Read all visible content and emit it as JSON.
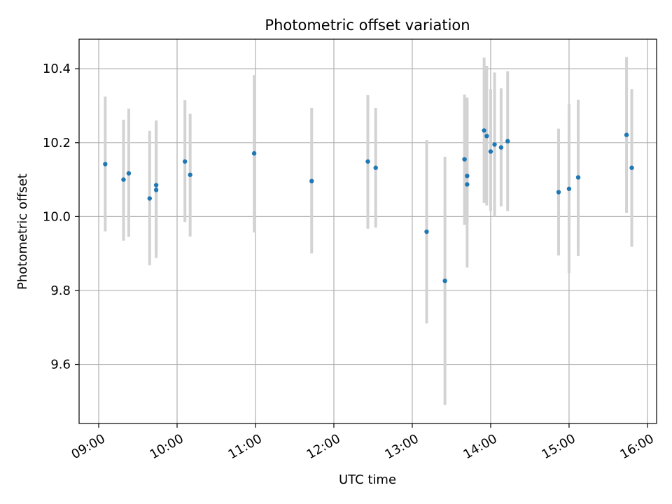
{
  "chart_data": {
    "type": "scatter",
    "title": "Photometric offset variation",
    "xlabel": "UTC time",
    "ylabel": "Photometric offset",
    "x_is_time": true,
    "x_tick_labels": [
      "09:00",
      "10:00",
      "11:00",
      "12:00",
      "13:00",
      "14:00",
      "15:00",
      "16:00"
    ],
    "x_ticks": [
      "09:00",
      "10:00",
      "11:00",
      "12:00",
      "13:00",
      "14:00",
      "15:00",
      "16:00"
    ],
    "xlim": [
      "08:45",
      "16:07"
    ],
    "y_ticks": [
      9.6,
      9.8,
      10.0,
      10.2,
      10.4
    ],
    "y_tick_labels": [
      "9.6",
      "9.8",
      "10.0",
      "10.2",
      "10.4"
    ],
    "ylim": [
      9.44,
      10.48
    ],
    "grid": true,
    "point_color": "#1f77b4",
    "errorbar_color": "#d3d3d3",
    "points": [
      {
        "x": "09:05",
        "y": 10.142,
        "low": 9.96,
        "high": 10.325
      },
      {
        "x": "09:19",
        "y": 10.1,
        "low": 9.935,
        "high": 10.262
      },
      {
        "x": "09:23",
        "y": 10.117,
        "low": 9.945,
        "high": 10.292
      },
      {
        "x": "09:39",
        "y": 10.049,
        "low": 9.868,
        "high": 10.232
      },
      {
        "x": "09:44",
        "y": 10.072,
        "low": 9.888,
        "high": 10.26
      },
      {
        "x": "09:44",
        "y": 10.085,
        "low": 9.91,
        "high": 10.255
      },
      {
        "x": "10:06",
        "y": 10.149,
        "low": 9.985,
        "high": 10.315
      },
      {
        "x": "10:10",
        "y": 10.113,
        "low": 9.946,
        "high": 10.278
      },
      {
        "x": "10:59",
        "y": 10.171,
        "low": 9.957,
        "high": 10.383
      },
      {
        "x": "11:43",
        "y": 10.096,
        "low": 9.9,
        "high": 10.294
      },
      {
        "x": "12:26",
        "y": 10.149,
        "low": 9.967,
        "high": 10.329
      },
      {
        "x": "12:32",
        "y": 10.132,
        "low": 9.97,
        "high": 10.294
      },
      {
        "x": "13:11",
        "y": 9.959,
        "low": 9.711,
        "high": 10.207
      },
      {
        "x": "13:25",
        "y": 9.826,
        "low": 9.49,
        "high": 10.162
      },
      {
        "x": "13:40",
        "y": 10.155,
        "low": 9.978,
        "high": 10.33
      },
      {
        "x": "13:42",
        "y": 10.11,
        "low": 9.98,
        "high": 10.322
      },
      {
        "x": "13:42",
        "y": 10.087,
        "low": 9.862,
        "high": 10.31
      },
      {
        "x": "13:55",
        "y": 10.233,
        "low": 10.037,
        "high": 10.43
      },
      {
        "x": "13:57",
        "y": 10.218,
        "low": 10.03,
        "high": 10.408
      },
      {
        "x": "14:00",
        "y": 10.176,
        "low": 10.015,
        "high": 10.345
      },
      {
        "x": "14:03",
        "y": 10.195,
        "low": 10.0,
        "high": 10.39
      },
      {
        "x": "14:08",
        "y": 10.187,
        "low": 10.028,
        "high": 10.347
      },
      {
        "x": "14:13",
        "y": 10.204,
        "low": 10.015,
        "high": 10.393
      },
      {
        "x": "14:52",
        "y": 10.066,
        "low": 9.895,
        "high": 10.238
      },
      {
        "x": "15:00",
        "y": 10.075,
        "low": 9.847,
        "high": 10.304
      },
      {
        "x": "15:07",
        "y": 10.106,
        "low": 9.893,
        "high": 10.316
      },
      {
        "x": "15:44",
        "y": 10.221,
        "low": 10.01,
        "high": 10.432
      },
      {
        "x": "15:48",
        "y": 10.132,
        "low": 9.918,
        "high": 10.345
      }
    ]
  }
}
